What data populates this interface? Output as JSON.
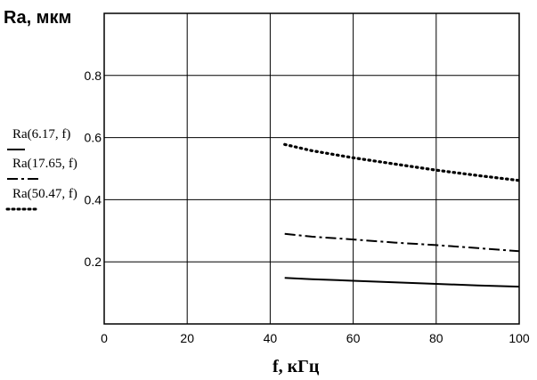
{
  "chart_data": {
    "type": "line",
    "title": "",
    "ylabel": "Ra, мкм",
    "xlabel": "f, кГц",
    "xlim": [
      0,
      100
    ],
    "ylim": [
      0,
      1
    ],
    "xticks": [
      0,
      20,
      40,
      60,
      80,
      100
    ],
    "yticks": [
      0.2,
      0.4,
      0.6,
      0.8
    ],
    "ytick_labels": [
      "0.2",
      "0.4",
      "0.6",
      "0.8"
    ],
    "grid": true,
    "legend_position": "left",
    "series": [
      {
        "name": "Ra(6.17, f)",
        "style": "solid",
        "x": [
          43.5,
          50,
          60,
          70,
          80,
          90,
          100
        ],
        "y": [
          0.148,
          0.144,
          0.139,
          0.134,
          0.129,
          0.124,
          0.12
        ]
      },
      {
        "name": "Ra(17.65, f)",
        "style": "dashdot",
        "x": [
          43.5,
          50,
          60,
          70,
          80,
          90,
          100
        ],
        "y": [
          0.29,
          0.281,
          0.272,
          0.262,
          0.254,
          0.244,
          0.234
        ]
      },
      {
        "name": "Ra(50.47, f)",
        "style": "dotted",
        "x": [
          43.5,
          50,
          60,
          70,
          80,
          90,
          100
        ],
        "y": [
          0.578,
          0.558,
          0.535,
          0.515,
          0.495,
          0.478,
          0.462
        ]
      }
    ]
  }
}
